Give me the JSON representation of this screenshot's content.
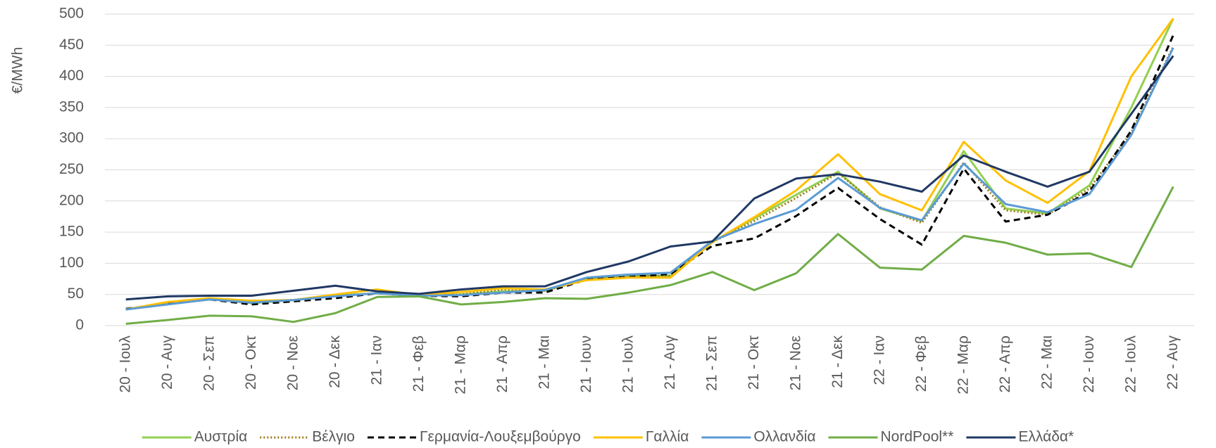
{
  "chart_data": {
    "type": "line",
    "y_label": "€/MWh",
    "categories": [
      "20 - Ιουλ",
      "20 - Αυγ",
      "20 - Σεπ",
      "20 - Οκτ",
      "20 - Νοε",
      "20 - Δεκ",
      "21 - Ιαν",
      "21 - Φεβ",
      "21 - Μαρ",
      "21 - Απρ",
      "21 - Μαι",
      "21 - Ιουν",
      "21 - Ιουλ",
      "21 - Αυγ",
      "21 - Σεπ",
      "21 - Οκτ",
      "21 - Νοε",
      "21 - Δεκ",
      "22 - Ιαν",
      "22 - Φεβ",
      "22 - Μαρ",
      "22 - Απρ",
      "22 - Μαι",
      "22 - Ιουν",
      "22 - Ιουλ",
      "22 - Αυγ"
    ],
    "ylim": [
      0,
      500
    ],
    "yticks": [
      0,
      50,
      100,
      150,
      200,
      250,
      300,
      350,
      400,
      450,
      500
    ],
    "grid": true,
    "legend": "bottom",
    "series": [
      {
        "name": "Αυστρία",
        "color": "#92d050",
        "style": "solid",
        "values": [
          26,
          35,
          43,
          36,
          41,
          48,
          52,
          48,
          50,
          55,
          56,
          75,
          80,
          80,
          134,
          172,
          210,
          247,
          188,
          168,
          280,
          188,
          180,
          225,
          350,
          493
        ]
      },
      {
        "name": "Βέλγιο",
        "color": "#9c7a17",
        "style": "dotted",
        "values": [
          26,
          35,
          42,
          38,
          41,
          48,
          52,
          48,
          50,
          58,
          56,
          74,
          80,
          80,
          134,
          168,
          205,
          245,
          190,
          165,
          262,
          185,
          178,
          220,
          310,
          448
        ]
      },
      {
        "name": "Γερμανία-Λουξεμβούργο",
        "color": "#000000",
        "style": "dashed",
        "values": [
          27,
          35,
          42,
          34,
          39,
          44,
          52,
          48,
          47,
          53,
          53,
          74,
          78,
          83,
          128,
          140,
          176,
          221,
          171,
          130,
          252,
          167,
          178,
          215,
          313,
          466
        ]
      },
      {
        "name": "Γαλλία",
        "color": "#ffc000",
        "style": "solid",
        "values": [
          26,
          38,
          44,
          40,
          41,
          50,
          58,
          49,
          54,
          60,
          58,
          73,
          77,
          77,
          134,
          174,
          217,
          275,
          211,
          185,
          295,
          233,
          197,
          248,
          400,
          493
        ]
      },
      {
        "name": "Ολλανδία",
        "color": "#5b9bd5",
        "style": "solid",
        "values": [
          26,
          34,
          42,
          37,
          41,
          47,
          52,
          48,
          49,
          53,
          57,
          77,
          82,
          85,
          136,
          163,
          186,
          237,
          189,
          169,
          260,
          195,
          182,
          211,
          306,
          446
        ]
      },
      {
        "name": "NordPool**",
        "color": "#70ad47",
        "style": "solid",
        "values": [
          3,
          9,
          16,
          15,
          6,
          20,
          46,
          47,
          34,
          38,
          44,
          43,
          53,
          65,
          86,
          57,
          84,
          147,
          93,
          90,
          144,
          133,
          114,
          116,
          94,
          223
        ]
      },
      {
        "name": "Ελλάδα*",
        "color": "#203864",
        "style": "solid",
        "values": [
          42,
          47,
          48,
          48,
          56,
          64,
          55,
          51,
          58,
          63,
          63,
          86,
          103,
          127,
          135,
          204,
          236,
          243,
          231,
          215,
          273,
          247,
          223,
          247,
          340,
          433
        ]
      }
    ]
  }
}
